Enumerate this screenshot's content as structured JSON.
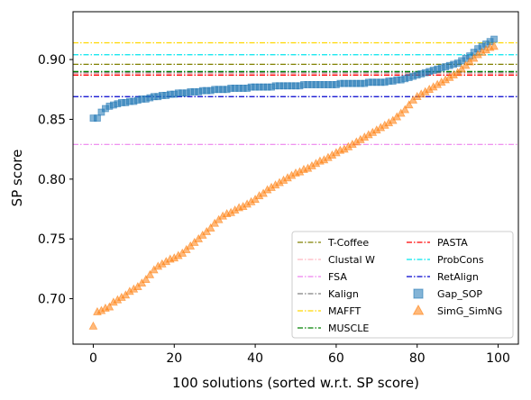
{
  "chart_data": {
    "type": "scatter",
    "xlabel": "100 solutions (sorted w.r.t. SP score)",
    "ylabel": "SP score",
    "xlim": [
      -5,
      105
    ],
    "ylim": [
      0.662,
      0.94
    ],
    "xticks": [
      0,
      20,
      40,
      60,
      80,
      100
    ],
    "yticks": [
      0.7,
      0.75,
      0.8,
      0.85,
      0.9
    ],
    "xtick_labels": [
      "0",
      "20",
      "40",
      "60",
      "80",
      "100"
    ],
    "ytick_labels": [
      "0.70",
      "0.75",
      "0.80",
      "0.85",
      "0.90"
    ],
    "grid": false,
    "legend_position": "lower-right",
    "reference_lines": [
      {
        "name": "T-Coffee",
        "y": 0.896,
        "color": "#808000",
        "style": "dashdot"
      },
      {
        "name": "Clustal W",
        "y": 0.888,
        "color": "#ffb6c1",
        "style": "dashdot"
      },
      {
        "name": "FSA",
        "y": 0.829,
        "color": "#ee82ee",
        "style": "dashdot"
      },
      {
        "name": "Kalign",
        "y": 0.889,
        "color": "#808080",
        "style": "dashdot"
      },
      {
        "name": "MAFFT",
        "y": 0.914,
        "color": "#ffd700",
        "style": "dashdot"
      },
      {
        "name": "MUSCLE",
        "y": 0.89,
        "color": "#008000",
        "style": "dashdot"
      },
      {
        "name": "PASTA",
        "y": 0.887,
        "color": "#ff0000",
        "style": "dashdot"
      },
      {
        "name": "ProbCons",
        "y": 0.904,
        "color": "#00e5ee",
        "style": "dashdot"
      },
      {
        "name": "RetAlign",
        "y": 0.869,
        "color": "#0000cd",
        "style": "dashdot"
      }
    ],
    "series": [
      {
        "name": "Gap_SOP",
        "marker": "square",
        "color": "#1f77b4",
        "values": [
          0.851,
          0.851,
          0.856,
          0.859,
          0.861,
          0.862,
          0.863,
          0.864,
          0.864,
          0.865,
          0.865,
          0.866,
          0.867,
          0.867,
          0.868,
          0.869,
          0.869,
          0.87,
          0.87,
          0.871,
          0.871,
          0.872,
          0.872,
          0.872,
          0.873,
          0.873,
          0.873,
          0.874,
          0.874,
          0.874,
          0.875,
          0.875,
          0.875,
          0.875,
          0.876,
          0.876,
          0.876,
          0.876,
          0.876,
          0.877,
          0.877,
          0.877,
          0.877,
          0.877,
          0.877,
          0.878,
          0.878,
          0.878,
          0.878,
          0.878,
          0.878,
          0.878,
          0.879,
          0.879,
          0.879,
          0.879,
          0.879,
          0.879,
          0.879,
          0.879,
          0.879,
          0.88,
          0.88,
          0.88,
          0.88,
          0.88,
          0.88,
          0.88,
          0.881,
          0.881,
          0.881,
          0.881,
          0.881,
          0.882,
          0.882,
          0.883,
          0.883,
          0.884,
          0.885,
          0.886,
          0.887,
          0.888,
          0.889,
          0.89,
          0.891,
          0.892,
          0.893,
          0.894,
          0.895,
          0.896,
          0.897,
          0.899,
          0.901,
          0.903,
          0.906,
          0.909,
          0.911,
          0.913,
          0.915,
          0.917
        ]
      },
      {
        "name": "SimG_SimNG",
        "marker": "triangle",
        "color": "#ff7f0e",
        "values": [
          0.677,
          0.689,
          0.69,
          0.692,
          0.693,
          0.697,
          0.699,
          0.701,
          0.703,
          0.706,
          0.708,
          0.71,
          0.713,
          0.716,
          0.72,
          0.724,
          0.727,
          0.729,
          0.731,
          0.733,
          0.734,
          0.736,
          0.738,
          0.741,
          0.744,
          0.747,
          0.75,
          0.753,
          0.756,
          0.759,
          0.763,
          0.766,
          0.769,
          0.771,
          0.772,
          0.774,
          0.776,
          0.777,
          0.779,
          0.781,
          0.783,
          0.786,
          0.788,
          0.791,
          0.793,
          0.795,
          0.797,
          0.799,
          0.801,
          0.803,
          0.805,
          0.806,
          0.808,
          0.809,
          0.811,
          0.813,
          0.815,
          0.816,
          0.818,
          0.82,
          0.822,
          0.824,
          0.825,
          0.827,
          0.829,
          0.831,
          0.833,
          0.835,
          0.837,
          0.839,
          0.841,
          0.843,
          0.845,
          0.847,
          0.849,
          0.852,
          0.855,
          0.858,
          0.862,
          0.866,
          0.869,
          0.871,
          0.873,
          0.875,
          0.877,
          0.879,
          0.881,
          0.883,
          0.885,
          0.887,
          0.889,
          0.892,
          0.895,
          0.898,
          0.901,
          0.904,
          0.906,
          0.908,
          0.91,
          0.911
        ]
      }
    ]
  }
}
